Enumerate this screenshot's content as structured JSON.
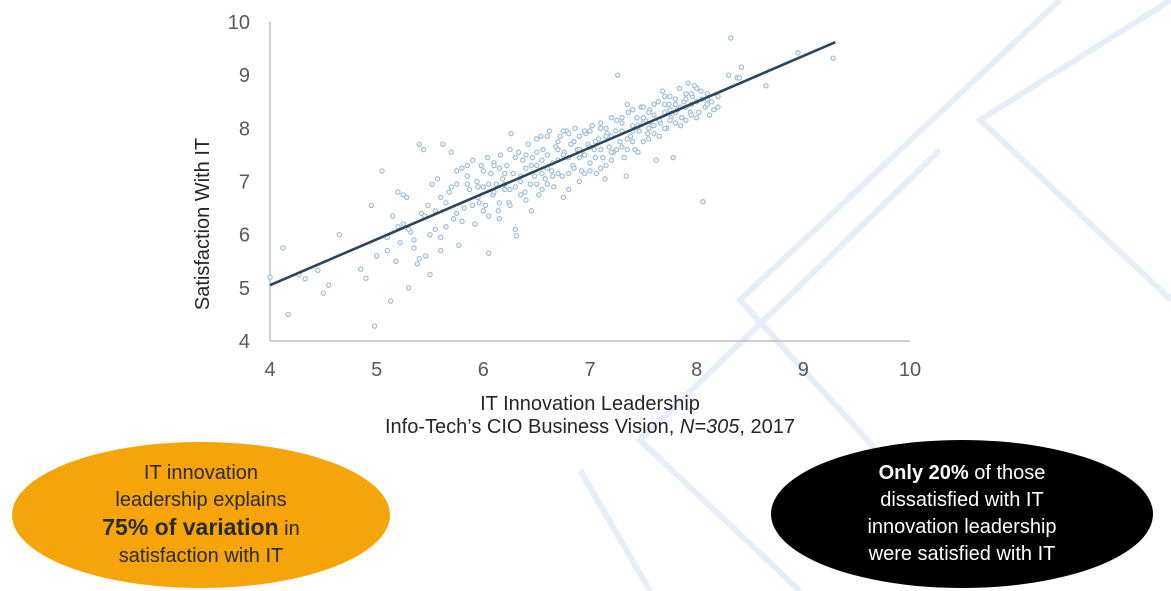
{
  "chart_data": {
    "type": "scatter",
    "title": "",
    "xlabel": "IT Innovation Leadership",
    "ylabel": "Satisfaction With IT",
    "xlim": [
      4,
      10
    ],
    "ylim": [
      4,
      10
    ],
    "x_ticks": [
      "4",
      "5",
      "6",
      "7",
      "8",
      "9",
      "10"
    ],
    "y_ticks": [
      "4",
      "5",
      "6",
      "7",
      "8",
      "9",
      "10"
    ],
    "grid": false,
    "point_color": "#9fbcd6",
    "trendline": {
      "x": [
        4.0,
        9.3
      ],
      "y": [
        5.05,
        9.62
      ],
      "color": "#2e4458"
    },
    "points": [
      [
        4.0,
        5.2
      ],
      [
        4.12,
        5.75
      ],
      [
        4.17,
        4.5
      ],
      [
        4.27,
        5.25
      ],
      [
        4.33,
        5.17
      ],
      [
        4.45,
        5.33
      ],
      [
        4.5,
        4.9
      ],
      [
        4.55,
        5.05
      ],
      [
        4.65,
        6.0
      ],
      [
        4.85,
        5.35
      ],
      [
        4.9,
        5.18
      ],
      [
        4.95,
        6.55
      ],
      [
        4.98,
        4.28
      ],
      [
        5.0,
        5.6
      ],
      [
        5.05,
        7.2
      ],
      [
        5.1,
        5.95
      ],
      [
        5.13,
        4.75
      ],
      [
        5.15,
        6.35
      ],
      [
        5.18,
        5.5
      ],
      [
        5.2,
        6.8
      ],
      [
        5.22,
        5.85
      ],
      [
        5.25,
        6.2
      ],
      [
        5.28,
        6.7
      ],
      [
        5.3,
        5.0
      ],
      [
        5.32,
        6.05
      ],
      [
        5.35,
        5.9
      ],
      [
        5.38,
        5.45
      ],
      [
        5.4,
        7.7
      ],
      [
        5.42,
        6.4
      ],
      [
        5.44,
        7.6
      ],
      [
        5.46,
        5.6
      ],
      [
        5.48,
        6.55
      ],
      [
        5.5,
        5.25
      ],
      [
        5.52,
        6.95
      ],
      [
        5.55,
        6.45
      ],
      [
        5.57,
        7.05
      ],
      [
        5.6,
        5.7
      ],
      [
        5.62,
        7.7
      ],
      [
        5.65,
        6.15
      ],
      [
        5.68,
        6.8
      ],
      [
        5.7,
        7.55
      ],
      [
        5.72,
        6.3
      ],
      [
        5.75,
        6.95
      ],
      [
        5.77,
        5.8
      ],
      [
        5.8,
        7.25
      ],
      [
        5.82,
        6.5
      ],
      [
        5.85,
        7.1
      ],
      [
        5.87,
        6.85
      ],
      [
        5.9,
        7.4
      ],
      [
        5.92,
        6.2
      ],
      [
        5.94,
        7.0
      ],
      [
        5.96,
        6.6
      ],
      [
        5.98,
        7.3
      ],
      [
        6.0,
        6.9
      ],
      [
        6.02,
        6.55
      ],
      [
        6.04,
        7.45
      ],
      [
        6.05,
        5.65
      ],
      [
        6.07,
        7.15
      ],
      [
        6.09,
        6.75
      ],
      [
        6.1,
        7.35
      ],
      [
        6.12,
        6.95
      ],
      [
        6.14,
        6.45
      ],
      [
        6.16,
        7.5
      ],
      [
        6.18,
        7.05
      ],
      [
        6.2,
        6.85
      ],
      [
        6.22,
        7.3
      ],
      [
        6.24,
        6.6
      ],
      [
        6.26,
        7.9
      ],
      [
        6.28,
        7.15
      ],
      [
        6.3,
        6.1
      ],
      [
        6.31,
        5.98
      ],
      [
        6.33,
        7.55
      ],
      [
        6.35,
        7.0
      ],
      [
        6.37,
        7.4
      ],
      [
        6.39,
        6.8
      ],
      [
        6.4,
        7.25
      ],
      [
        6.42,
        7.7
      ],
      [
        6.44,
        6.95
      ],
      [
        6.46,
        7.45
      ],
      [
        6.48,
        7.1
      ],
      [
        6.5,
        7.3
      ],
      [
        6.52,
        6.75
      ],
      [
        6.54,
        7.85
      ],
      [
        6.56,
        7.6
      ],
      [
        6.58,
        7.05
      ],
      [
        6.6,
        7.5
      ],
      [
        6.62,
        7.95
      ],
      [
        6.64,
        7.2
      ],
      [
        6.66,
        6.9
      ],
      [
        6.68,
        7.65
      ],
      [
        6.7,
        7.4
      ],
      [
        6.72,
        7.85
      ],
      [
        6.74,
        7.1
      ],
      [
        6.76,
        7.55
      ],
      [
        6.78,
        7.95
      ],
      [
        6.8,
        6.85
      ],
      [
        6.82,
        7.7
      ],
      [
        6.84,
        7.3
      ],
      [
        6.86,
        8.0
      ],
      [
        6.88,
        7.6
      ],
      [
        6.9,
        7.85
      ],
      [
        6.92,
        7.2
      ],
      [
        6.94,
        7.5
      ],
      [
        6.96,
        7.9
      ],
      [
        6.98,
        7.7
      ],
      [
        7.0,
        7.35
      ],
      [
        7.02,
        8.05
      ],
      [
        7.04,
        7.6
      ],
      [
        7.06,
        7.15
      ],
      [
        7.08,
        7.8
      ],
      [
        7.1,
        8.0
      ],
      [
        7.12,
        7.45
      ],
      [
        7.14,
        7.05
      ],
      [
        7.16,
        7.9
      ],
      [
        7.18,
        7.65
      ],
      [
        7.2,
        8.2
      ],
      [
        7.22,
        7.55
      ],
      [
        7.24,
        7.95
      ],
      [
        7.26,
        9.0
      ],
      [
        7.28,
        7.75
      ],
      [
        7.3,
        8.1
      ],
      [
        7.32,
        7.45
      ],
      [
        7.34,
        7.1
      ],
      [
        7.36,
        8.3
      ],
      [
        7.38,
        7.85
      ],
      [
        7.4,
        8.05
      ],
      [
        7.42,
        7.6
      ],
      [
        7.44,
        8.2
      ],
      [
        7.46,
        7.95
      ],
      [
        7.48,
        8.4
      ],
      [
        7.5,
        7.75
      ],
      [
        7.52,
        8.15
      ],
      [
        7.54,
        7.9
      ],
      [
        7.56,
        8.35
      ],
      [
        7.58,
        8.05
      ],
      [
        7.6,
        8.25
      ],
      [
        7.62,
        7.4
      ],
      [
        7.64,
        8.5
      ],
      [
        7.66,
        8.1
      ],
      [
        7.68,
        8.7
      ],
      [
        7.7,
        8.3
      ],
      [
        7.72,
        8.0
      ],
      [
        7.74,
        8.45
      ],
      [
        7.76,
        8.2
      ],
      [
        7.78,
        7.45
      ],
      [
        7.8,
        8.55
      ],
      [
        7.82,
        8.35
      ],
      [
        7.84,
        8.75
      ],
      [
        7.86,
        8.2
      ],
      [
        7.88,
        8.5
      ],
      [
        7.9,
        8.4
      ],
      [
        7.92,
        8.85
      ],
      [
        7.94,
        8.3
      ],
      [
        7.96,
        8.6
      ],
      [
        7.98,
        8.8
      ],
      [
        8.0,
        8.5
      ],
      [
        8.02,
        8.3
      ],
      [
        8.04,
        8.7
      ],
      [
        8.06,
        6.62
      ],
      [
        8.08,
        8.4
      ],
      [
        8.1,
        8.65
      ],
      [
        8.12,
        8.25
      ],
      [
        8.14,
        8.5
      ],
      [
        8.16,
        8.35
      ],
      [
        8.2,
        8.6
      ],
      [
        8.3,
        9.0
      ],
      [
        8.32,
        9.7
      ],
      [
        8.38,
        8.95
      ],
      [
        8.42,
        9.15
      ],
      [
        8.65,
        8.8
      ],
      [
        8.95,
        9.42
      ],
      [
        9.28,
        9.32
      ],
      [
        6.15,
        6.6
      ],
      [
        6.25,
        6.85
      ],
      [
        6.45,
        6.45
      ],
      [
        6.55,
        7.15
      ],
      [
        6.65,
        7.35
      ],
      [
        6.75,
        6.7
      ],
      [
        6.85,
        7.25
      ],
      [
        6.95,
        7.5
      ],
      [
        7.05,
        7.75
      ],
      [
        7.15,
        7.3
      ],
      [
        7.25,
        7.6
      ],
      [
        7.35,
        7.8
      ],
      [
        7.45,
        7.55
      ],
      [
        7.55,
        8.0
      ],
      [
        7.65,
        7.85
      ],
      [
        7.75,
        8.15
      ],
      [
        7.85,
        8.05
      ],
      [
        7.95,
        8.25
      ],
      [
        5.95,
        6.7
      ],
      [
        6.05,
        6.95
      ],
      [
        6.35,
        7.1
      ],
      [
        6.5,
        7.55
      ],
      [
        6.6,
        7.85
      ],
      [
        6.7,
        7.15
      ],
      [
        6.8,
        7.45
      ],
      [
        6.9,
        7.0
      ],
      [
        7.0,
        7.95
      ],
      [
        7.1,
        7.25
      ],
      [
        7.2,
        7.4
      ],
      [
        7.3,
        7.95
      ],
      [
        7.4,
        7.75
      ],
      [
        7.5,
        8.1
      ],
      [
        7.6,
        7.9
      ],
      [
        7.7,
        8.0
      ],
      [
        7.8,
        8.3
      ],
      [
        7.9,
        8.15
      ],
      [
        8.0,
        8.75
      ],
      [
        8.1,
        8.45
      ],
      [
        5.55,
        6.1
      ],
      [
        5.65,
        6.6
      ],
      [
        5.75,
        6.4
      ],
      [
        5.85,
        6.95
      ],
      [
        6.0,
        7.2
      ],
      [
        6.1,
        6.8
      ],
      [
        6.2,
        7.15
      ],
      [
        6.3,
        6.9
      ],
      [
        6.4,
        6.65
      ],
      [
        6.5,
        6.95
      ],
      [
        6.6,
        7.25
      ],
      [
        6.7,
        7.6
      ],
      [
        6.8,
        7.9
      ],
      [
        6.9,
        7.45
      ],
      [
        7.0,
        7.2
      ],
      [
        7.1,
        7.6
      ],
      [
        7.2,
        7.85
      ],
      [
        7.3,
        7.65
      ],
      [
        7.4,
        8.35
      ],
      [
        7.5,
        8.2
      ],
      [
        7.6,
        8.05
      ],
      [
        7.7,
        8.45
      ],
      [
        7.8,
        8.1
      ],
      [
        7.9,
        8.65
      ],
      [
        5.3,
        6.1
      ],
      [
        5.45,
        6.35
      ],
      [
        5.6,
        6.7
      ],
      [
        5.8,
        6.25
      ],
      [
        5.9,
        6.55
      ],
      [
        6.05,
        6.35
      ],
      [
        6.15,
        7.25
      ],
      [
        6.25,
        6.55
      ],
      [
        6.35,
        6.75
      ],
      [
        6.45,
        7.3
      ],
      [
        6.55,
        6.85
      ],
      [
        6.65,
        7.1
      ],
      [
        6.75,
        7.5
      ],
      [
        6.85,
        7.75
      ],
      [
        6.95,
        7.95
      ],
      [
        7.05,
        7.45
      ],
      [
        7.15,
        7.85
      ],
      [
        7.25,
        8.15
      ],
      [
        7.35,
        7.6
      ],
      [
        7.45,
        8.05
      ],
      [
        7.55,
        8.3
      ],
      [
        7.65,
        8.15
      ],
      [
        7.75,
        8.6
      ],
      [
        7.85,
        8.4
      ],
      [
        7.95,
        8.65
      ],
      [
        8.05,
        8.55
      ],
      [
        5.1,
        5.7
      ],
      [
        5.2,
        6.15
      ],
      [
        5.35,
        5.75
      ],
      [
        5.5,
        6.0
      ],
      [
        5.7,
        6.9
      ],
      [
        5.85,
        7.3
      ],
      [
        6.0,
        6.45
      ],
      [
        6.1,
        7.3
      ],
      [
        6.2,
        6.95
      ],
      [
        6.3,
        7.45
      ],
      [
        6.4,
        7.5
      ],
      [
        6.5,
        7.8
      ],
      [
        6.6,
        6.95
      ],
      [
        6.7,
        7.75
      ],
      [
        6.8,
        7.15
      ],
      [
        6.9,
        7.6
      ],
      [
        7.0,
        7.65
      ],
      [
        7.1,
        8.1
      ],
      [
        7.2,
        7.55
      ],
      [
        7.3,
        8.2
      ],
      [
        7.4,
        7.95
      ],
      [
        7.5,
        8.4
      ],
      [
        7.6,
        8.45
      ],
      [
        7.7,
        8.6
      ],
      [
        7.8,
        8.45
      ],
      [
        7.9,
        8.55
      ],
      [
        8.0,
        8.2
      ],
      [
        8.1,
        8.55
      ],
      [
        8.2,
        8.4
      ],
      [
        8.4,
        8.95
      ],
      [
        5.25,
        6.75
      ],
      [
        5.4,
        5.55
      ],
      [
        5.6,
        5.95
      ],
      [
        5.75,
        7.2
      ],
      [
        5.95,
        6.9
      ],
      [
        6.15,
        6.3
      ],
      [
        6.55,
        7.4
      ],
      [
        6.75,
        7.95
      ],
      [
        6.95,
        7.15
      ],
      [
        7.15,
        8.0
      ],
      [
        7.35,
        8.45
      ],
      [
        7.55,
        7.8
      ],
      [
        7.75,
        8.35
      ],
      [
        7.95,
        8.45
      ],
      [
        6.25,
        7.6
      ]
    ]
  },
  "subtitle": {
    "prefix": "Info-Tech’s CIO Business Vision, ",
    "n_label": "N=305",
    "suffix": ", 2017"
  },
  "callout_left": {
    "line1": "IT innovation",
    "line2": "leadership explains",
    "highlight": "75% of variation",
    "line3_rest": " in",
    "line4": "satisfaction with IT",
    "color": "#f5a50a"
  },
  "callout_right": {
    "highlight": "Only 20%",
    "line1_rest": " of those",
    "line2": "dissatisfied with IT",
    "line3": "innovation leadership",
    "line4": "were satisfied with IT",
    "color": "#000000"
  }
}
